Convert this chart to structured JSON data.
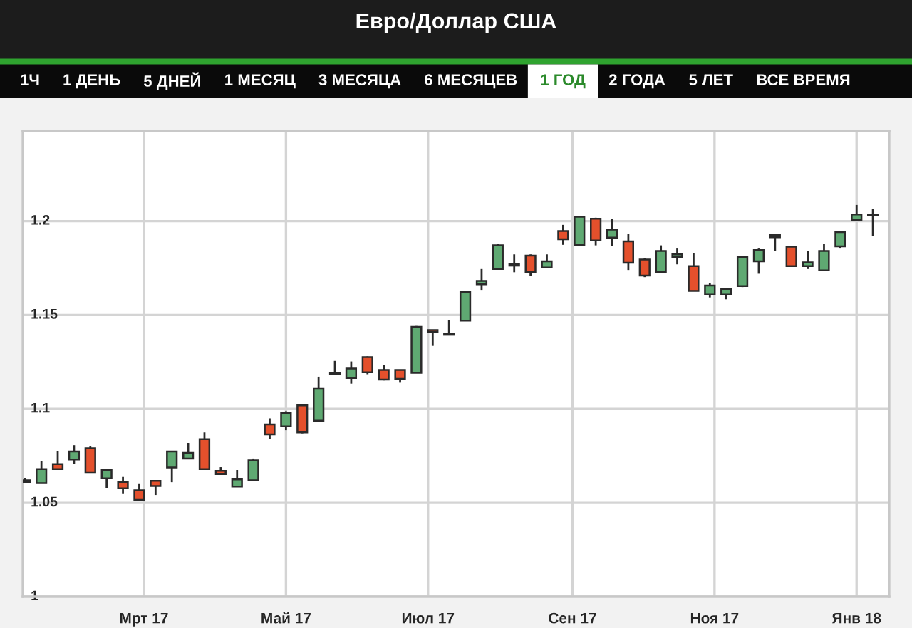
{
  "chart_data": {
    "type": "candlestick",
    "title": "Евро/Доллар США",
    "annotations": [
      "1Ч",
      "1 ДЕНЬ",
      "5 ДНЕЙ",
      "1 МЕСЯЦ",
      "3 МЕСЯЦА",
      "6 МЕСЯЦЕВ",
      "1 ГОД",
      "2 ГОДА",
      "5 ЛЕТ",
      "ВСЕ ВРЕМЯ"
    ],
    "x": [
      "2017-01-09",
      "2017-01-16",
      "2017-01-23",
      "2017-01-30",
      "2017-02-06",
      "2017-02-13",
      "2017-02-20",
      "2017-02-27",
      "2017-03-06",
      "2017-03-13",
      "2017-03-20",
      "2017-03-27",
      "2017-04-03",
      "2017-04-10",
      "2017-04-17",
      "2017-04-24",
      "2017-05-01",
      "2017-05-08",
      "2017-05-15",
      "2017-05-22",
      "2017-05-29",
      "2017-06-05",
      "2017-06-12",
      "2017-06-19",
      "2017-06-26",
      "2017-07-03",
      "2017-07-10",
      "2017-07-17",
      "2017-07-24",
      "2017-07-31",
      "2017-08-07",
      "2017-08-14",
      "2017-08-21",
      "2017-08-28",
      "2017-09-04",
      "2017-09-11",
      "2017-09-18",
      "2017-09-25",
      "2017-10-02",
      "2017-10-09",
      "2017-10-16",
      "2017-10-23",
      "2017-10-30",
      "2017-11-06",
      "2017-11-13",
      "2017-11-20",
      "2017-11-27",
      "2017-12-04",
      "2017-12-11",
      "2017-12-18",
      "2017-12-25",
      "2018-01-01",
      "2018-01-08"
    ],
    "ohlc": [
      [
        1.062,
        1.063,
        1.061,
        1.061
      ],
      [
        1.0605,
        1.0723,
        1.0605,
        1.068
      ],
      [
        1.0706,
        1.0774,
        1.068,
        1.068
      ],
      [
        1.0731,
        1.0807,
        1.0706,
        1.0774
      ],
      [
        1.0791,
        1.08,
        1.066,
        1.066
      ],
      [
        1.063,
        1.068,
        1.058,
        1.0675
      ],
      [
        1.061,
        1.0638,
        1.0547,
        1.0577
      ],
      [
        1.0567,
        1.06,
        1.0516,
        1.0516
      ],
      [
        1.0617,
        1.062,
        1.0542,
        1.059
      ],
      [
        1.0688,
        1.0774,
        1.061,
        1.0774
      ],
      [
        1.0736,
        1.0819,
        1.0736,
        1.0766
      ],
      [
        1.0839,
        1.0875,
        1.068,
        1.068
      ],
      [
        1.067,
        1.069,
        1.0653,
        1.0653
      ],
      [
        1.0587,
        1.0675,
        1.0587,
        1.0625
      ],
      [
        1.062,
        1.0736,
        1.062,
        1.0726
      ],
      [
        1.0918,
        1.095,
        1.084,
        1.0865
      ],
      [
        1.0907,
        1.0988,
        1.0887,
        1.0978
      ],
      [
        1.1019,
        1.1026,
        1.087,
        1.0875
      ],
      [
        1.0938,
        1.1172,
        1.0938,
        1.1107
      ],
      [
        1.119,
        1.1256,
        1.1185,
        1.1185
      ],
      [
        1.1165,
        1.1253,
        1.1135,
        1.1215
      ],
      [
        1.1276,
        1.128,
        1.1185,
        1.1195
      ],
      [
        1.1208,
        1.1235,
        1.1152,
        1.1157
      ],
      [
        1.1208,
        1.1208,
        1.114,
        1.116
      ],
      [
        1.1193,
        1.1442,
        1.1193,
        1.1437
      ],
      [
        1.142,
        1.142,
        1.1336,
        1.141
      ],
      [
        1.1395,
        1.1475,
        1.1395,
        1.14
      ],
      [
        1.147,
        1.1629,
        1.147,
        1.1624
      ],
      [
        1.1664,
        1.1745,
        1.1634,
        1.1682
      ],
      [
        1.1745,
        1.1879,
        1.1745,
        1.1871
      ],
      [
        1.177,
        1.1823,
        1.1728,
        1.1763
      ],
      [
        1.1816,
        1.1823,
        1.171,
        1.1728
      ],
      [
        1.1753,
        1.1823,
        1.1753,
        1.1786
      ],
      [
        1.1947,
        1.198,
        1.1874,
        1.1904
      ],
      [
        1.1874,
        1.2028,
        1.1874,
        1.2023
      ],
      [
        1.2013,
        1.2018,
        1.1871,
        1.1897
      ],
      [
        1.1912,
        1.2013,
        1.1866,
        1.1955
      ],
      [
        1.1892,
        1.1934,
        1.174,
        1.1778
      ],
      [
        1.1796,
        1.1803,
        1.1702,
        1.171
      ],
      [
        1.173,
        1.1871,
        1.173,
        1.1841
      ],
      [
        1.1808,
        1.1854,
        1.177,
        1.1823
      ],
      [
        1.176,
        1.1828,
        1.1629,
        1.1629
      ],
      [
        1.1609,
        1.167,
        1.1594,
        1.1657
      ],
      [
        1.1609,
        1.1644,
        1.1584,
        1.1639
      ],
      [
        1.1654,
        1.1816,
        1.1649,
        1.1808
      ],
      [
        1.1786,
        1.1854,
        1.172,
        1.1846
      ],
      [
        1.1927,
        1.1932,
        1.1841,
        1.1914
      ],
      [
        1.1864,
        1.1869,
        1.176,
        1.176
      ],
      [
        1.176,
        1.1841,
        1.1745,
        1.178
      ],
      [
        1.1738,
        1.1879,
        1.1738,
        1.1841
      ],
      [
        1.1866,
        1.1947,
        1.1854,
        1.1942
      ],
      [
        1.2005,
        1.2086,
        1.2005,
        1.2035
      ],
      [
        1.203,
        1.2063,
        1.1922,
        1.2035
      ]
    ],
    "colors": [
      "#e4502c",
      "#5fa972",
      "#e4502c",
      "#5fa972",
      "#e4502c",
      "#5fa972",
      "#e4502c",
      "#e4502c",
      "#e4502c",
      "#5fa972",
      "#5fa972",
      "#e4502c",
      "#e4502c",
      "#5fa972",
      "#5fa972",
      "#e4502c",
      "#5fa972",
      "#e4502c",
      "#5fa972",
      "#e4502c",
      "#5fa972",
      "#e4502c",
      "#e4502c",
      "#e4502c",
      "#5fa972",
      "#e4502c",
      "#5fa972",
      "#5fa972",
      "#5fa972",
      "#5fa972",
      "#e4502c",
      "#e4502c",
      "#5fa972",
      "#e4502c",
      "#5fa972",
      "#e4502c",
      "#5fa972",
      "#e4502c",
      "#e4502c",
      "#5fa972",
      "#5fa972",
      "#e4502c",
      "#5fa972",
      "#5fa972",
      "#5fa972",
      "#5fa972",
      "#e4502c",
      "#e4502c",
      "#5fa972",
      "#5fa972",
      "#5fa972",
      "#5fa972",
      "#5fa972"
    ],
    "xlim": [
      "2017-01-08",
      "2018-01-15"
    ],
    "xticks": [
      {
        "value": "2017-03-01",
        "label": "Мрт 17"
      },
      {
        "value": "2017-05-01",
        "label": "Май 17"
      },
      {
        "value": "2017-07-01",
        "label": "Июл 17"
      },
      {
        "value": "2017-09-01",
        "label": "Сен 17"
      },
      {
        "value": "2017-11-01",
        "label": "Ноя 17"
      },
      {
        "value": "2018-01-01",
        "label": "Янв 18"
      }
    ],
    "ylim": [
      1.0,
      1.248
    ],
    "yticks": [
      1,
      1.05,
      1.1,
      1.15,
      1.2
    ],
    "grid": true
  }
}
